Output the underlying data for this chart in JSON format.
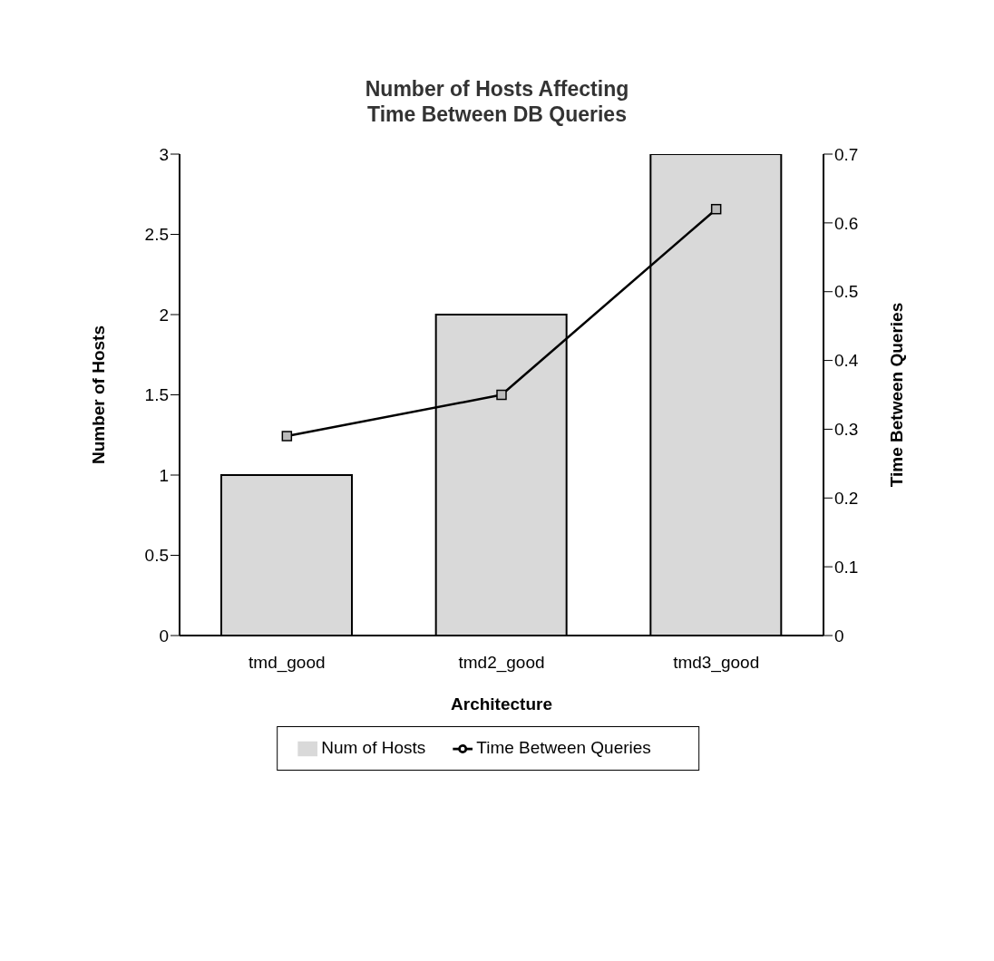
{
  "chart_data": {
    "type": "bar",
    "title": "Number of Hosts Affecting Time Between DB Queries",
    "xlabel": "Architecture",
    "ylabel": "Number of Hosts",
    "y2label": "Time Between Queries",
    "categories": [
      "tmd_good",
      "tmd2_good",
      "tmd3_good"
    ],
    "series": [
      {
        "name": "Num of Hosts",
        "color": "#d9d9d9",
        "values": [
          1,
          2,
          3
        ]
      },
      {
        "name": "Time Between Queries",
        "type": "line",
        "axis": "y2",
        "color": "#000000",
        "marker": "square",
        "values": [
          0.29,
          0.35,
          0.62
        ]
      }
    ],
    "ylim": [
      0,
      3
    ],
    "yticks": [
      0,
      0.5,
      1,
      1.5,
      2,
      2.5,
      3
    ],
    "y2lim": [
      0,
      0.7
    ],
    "y2ticks": [
      0,
      0.1,
      0.2,
      0.3,
      0.4,
      0.5,
      0.6,
      0.7
    ],
    "grid": false,
    "legend": "bottom"
  }
}
